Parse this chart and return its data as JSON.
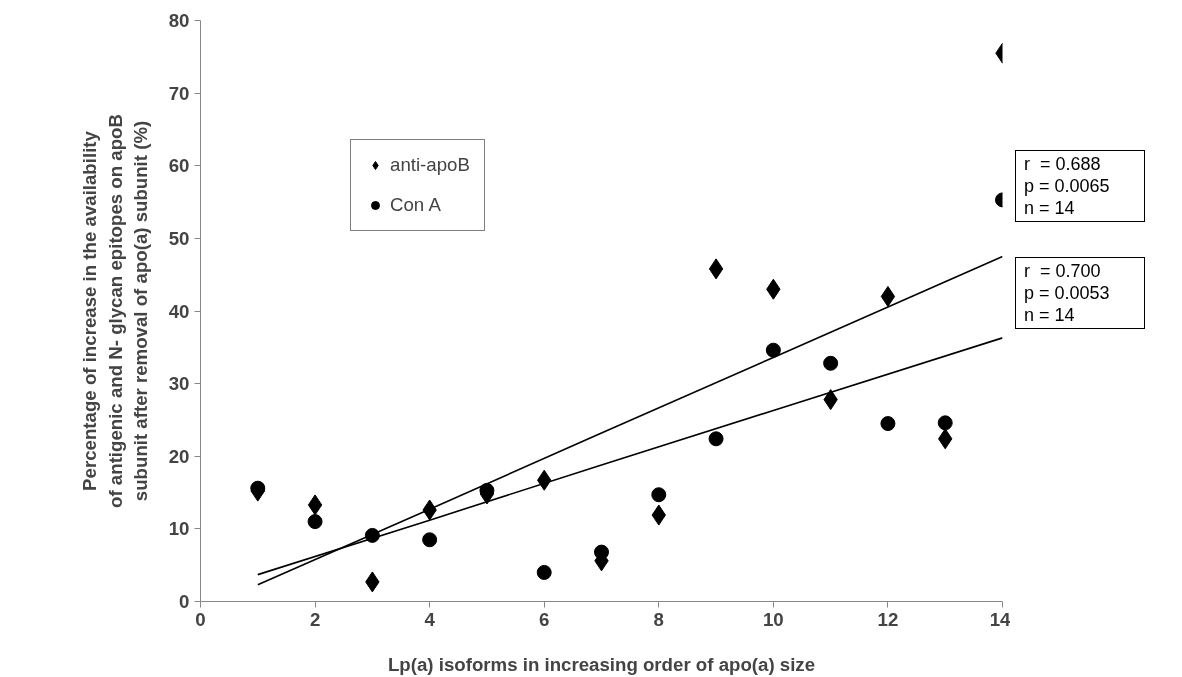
{
  "chart_data": {
    "type": "scatter",
    "xlabel": "Lp(a) isoforms in increasing order of apo(a) size",
    "ylabel": "Percentage of increase in the availability of antigenic and N- glycan epitopes on apoB subunit after removal of apo(a) subunit (%)",
    "x": [
      1,
      2,
      3,
      4,
      5,
      6,
      7,
      8,
      9,
      10,
      11,
      12,
      13,
      14
    ],
    "series": [
      {
        "name": "anti-apoB",
        "color": "#000000",
        "marker": "diamond",
        "values": [
          15.2,
          13.3,
          2.7,
          12.6,
          14.8,
          16.7,
          5.6,
          11.9,
          45.8,
          43.0,
          27.8,
          42.0,
          22.4,
          75.5
        ]
      },
      {
        "name": "Con A",
        "color": "#000000",
        "marker": "circle",
        "values": [
          15.6,
          11.0,
          9.1,
          8.5,
          15.3,
          4.0,
          6.8,
          14.7,
          22.4,
          34.6,
          32.8,
          24.5,
          24.6,
          55.3
        ]
      },
      {
        "type": "line",
        "color": "#000000",
        "x": [
          1,
          4,
          7,
          10,
          14
        ],
        "values": [
          2.3,
          12.7,
          23.2,
          33.6,
          47.5
        ]
      },
      {
        "type": "line",
        "color": "#000000",
        "x": [
          1,
          4,
          7,
          10,
          14
        ],
        "values": [
          3.7,
          11.2,
          18.8,
          26.3,
          36.3
        ]
      }
    ],
    "xlim": [
      0,
      14
    ],
    "xticks": [
      0,
      2,
      4,
      6,
      8,
      10,
      12,
      14
    ],
    "ylim": [
      0,
      80
    ],
    "yticks": [
      0,
      10,
      20,
      30,
      40,
      50,
      60,
      70,
      80
    ],
    "grid": false,
    "legend": "top left",
    "annotations": [
      "r  = 0.688\np = 0.0065\nn = 14",
      "r  = 0.700\np = 0.0053\nn = 14"
    ]
  }
}
